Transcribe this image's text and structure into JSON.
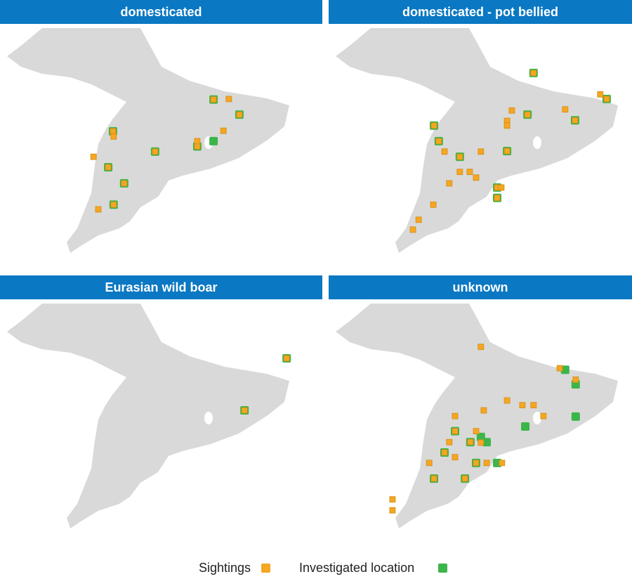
{
  "panels": [
    {
      "title": "domesticated",
      "investigated": {
        "lon": [
          -77.31,
          -76.5,
          -80.46,
          -79.14,
          -77.82,
          -80.61,
          -80.11,
          -80.44,
          -77.31
        ],
        "lat": [
          45.16,
          44.87,
          44.55,
          44.16,
          44.26,
          43.86,
          43.55,
          43.14,
          44.36
        ]
      },
      "sightings": {
        "lon": [
          -77.31,
          -76.5,
          -80.46,
          -79.14,
          -77.82,
          -80.61,
          -80.11,
          -80.44,
          -76.83,
          -77.0,
          -77.82,
          -80.44,
          -81.07,
          -80.92
        ],
        "lat": [
          45.16,
          44.87,
          44.55,
          44.16,
          44.26,
          43.86,
          43.55,
          43.14,
          45.17,
          44.56,
          44.36,
          44.45,
          44.06,
          43.05
        ]
      }
    },
    {
      "title": "domesticated - pot bellied",
      "investigated": {
        "lon": [
          -77.58,
          -75.29,
          -77.77,
          -76.28,
          -80.7,
          -80.55,
          -79.89,
          -78.41,
          -78.72,
          -78.72
        ],
        "lat": [
          45.67,
          45.17,
          44.87,
          44.76,
          44.66,
          44.36,
          44.06,
          44.17,
          43.47,
          43.27
        ]
      },
      "sightings": {
        "lon": [
          -77.58,
          -75.29,
          -77.77,
          -76.28,
          -80.7,
          -80.55,
          -79.89,
          -78.41,
          -78.72,
          -78.72,
          -75.49,
          -78.26,
          -76.59,
          -78.41,
          -78.41,
          -80.37,
          -79.23,
          -79.89,
          -79.58,
          -79.38,
          -80.22,
          -78.59,
          -80.72,
          -81.18,
          -81.36
        ],
        "lat": [
          45.67,
          45.17,
          44.87,
          44.76,
          44.66,
          44.36,
          44.06,
          44.17,
          43.47,
          43.27,
          45.26,
          44.95,
          44.97,
          44.75,
          44.66,
          44.16,
          44.16,
          43.77,
          43.77,
          43.66,
          43.55,
          43.47,
          43.14,
          42.85,
          42.66
        ]
      }
    },
    {
      "title": "Eurasian wild boar",
      "investigated": {
        "lon": [
          -75.02,
          -76.34
        ],
        "lat": [
          45.48,
          44.48
        ]
      },
      "sightings": {
        "lon": [
          -75.02,
          -76.34
        ],
        "lat": [
          45.48,
          44.48
        ]
      }
    },
    {
      "title": "unknown",
      "investigated": {
        "lon": [
          -76.59,
          -76.26,
          -76.26,
          -77.84,
          -80.04,
          -79.23,
          -79.56,
          -79.05,
          -80.37,
          -79.38,
          -78.72,
          -80.7,
          -79.73
        ],
        "lat": [
          45.26,
          44.98,
          44.36,
          44.17,
          44.08,
          43.97,
          43.87,
          43.87,
          43.67,
          43.47,
          43.47,
          43.17,
          43.17
        ]
      },
      "sightings": {
        "lon": [
          -80.04,
          -79.56,
          -80.37,
          -79.38,
          -80.7,
          -79.73,
          -79.23,
          -76.76,
          -76.26,
          -78.41,
          -77.93,
          -77.58,
          -80.04,
          -79.14,
          -77.27,
          -80.22,
          -79.38,
          -80.04,
          -80.85,
          -79.05,
          -78.57,
          -82.0,
          -82.0,
          -79.23
        ],
        "lat": [
          44.08,
          43.87,
          43.67,
          43.47,
          43.17,
          43.17,
          45.7,
          45.29,
          45.07,
          44.67,
          44.58,
          44.58,
          44.37,
          44.48,
          44.37,
          43.87,
          44.08,
          43.58,
          43.47,
          43.47,
          43.47,
          42.77,
          42.56,
          43.86
        ]
      }
    }
  ],
  "legend": [
    {
      "name": "Sightings",
      "color": "#f5a623"
    },
    {
      "name": "Investigated location",
      "color": "#3cb54a"
    }
  ]
}
